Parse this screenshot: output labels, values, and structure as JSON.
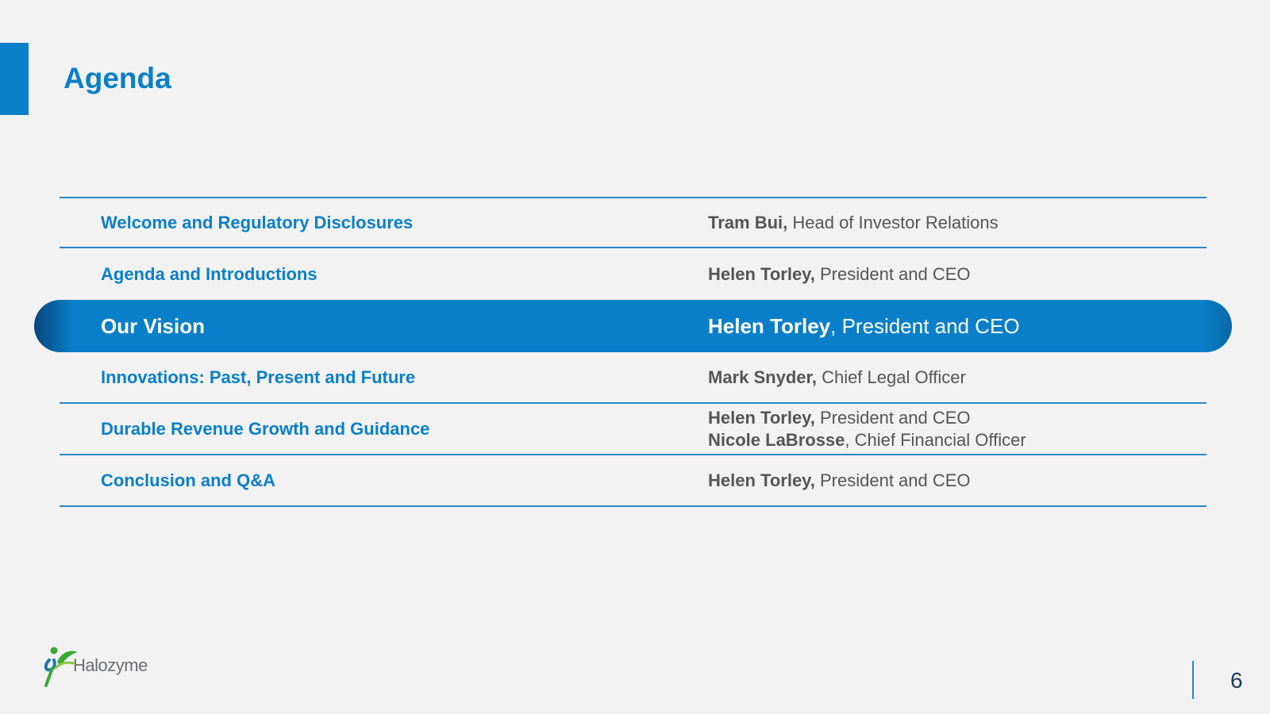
{
  "slide": {
    "title": "Agenda",
    "page_number": "6",
    "logo_text": "Halozyme"
  },
  "colors": {
    "accent": "#0a7fc9",
    "background": "#f2f2f2",
    "speaker_text": "#555555"
  },
  "agenda": [
    {
      "topic": "Welcome and Regulatory Disclosures",
      "speakers": [
        {
          "name": "Tram Bui,",
          "role": " Head of Investor Relations"
        }
      ]
    },
    {
      "topic": "Agenda and Introductions",
      "speakers": [
        {
          "name": "Helen Torley,",
          "role": " President and CEO"
        }
      ]
    },
    {
      "topic": "Our Vision",
      "highlighted": true,
      "speakers": [
        {
          "name": "Helen Torley",
          "role": ", President and CEO"
        }
      ]
    },
    {
      "topic": "Innovations: Past, Present and Future",
      "speakers": [
        {
          "name": "Mark Snyder,",
          "role": " Chief Legal Officer"
        }
      ]
    },
    {
      "topic": "Durable Revenue Growth and Guidance",
      "speakers": [
        {
          "name": "Helen Torley,",
          "role": " President and CEO"
        },
        {
          "name": "Nicole LaBrosse",
          "role": ", Chief Financial Officer"
        }
      ]
    },
    {
      "topic": "Conclusion and Q&A",
      "speakers": [
        {
          "name": "Helen Torley,",
          "role": " President and CEO"
        }
      ]
    }
  ]
}
